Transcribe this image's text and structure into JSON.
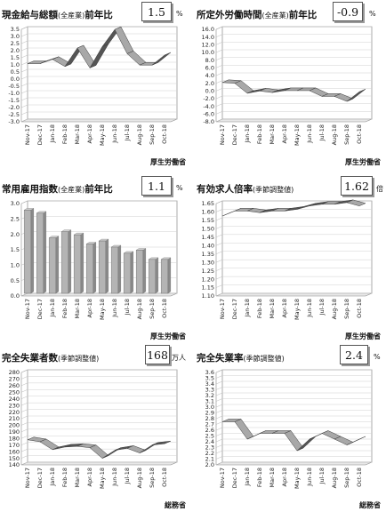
{
  "panels": [
    {
      "id": "p1",
      "title_main": "現金給与総額",
      "title_sub": "(全産業)",
      "title_tail": "前年比",
      "value": "1.5",
      "unit": "%",
      "source": "厚生労働省",
      "chart_data": {
        "type": "line",
        "categories": [
          "Nov-17",
          "Dec-17",
          "Jan-18",
          "Feb-18",
          "Mar-18",
          "Apr-18",
          "May-18",
          "Jun-18",
          "Jul-18",
          "Aug-18",
          "Sep-18",
          "Oct-18"
        ],
        "values": [
          0.9,
          0.9,
          1.2,
          0.7,
          2.0,
          0.6,
          2.1,
          3.3,
          1.6,
          0.8,
          0.8,
          1.5
        ],
        "ylim": [
          -3.0,
          3.5
        ],
        "yticks": [
          "3.5",
          "3.0",
          "2.5",
          "2.0",
          "1.5",
          "1.0",
          "0.5",
          "0.0",
          "-0.5",
          "-1.0",
          "-1.5",
          "-2.0",
          "-2.5",
          "-3.0"
        ]
      }
    },
    {
      "id": "p2",
      "title_main": "所定外労働時間",
      "title_sub": "(全産業)",
      "title_tail": "前年比",
      "value": "-0.9",
      "unit": "%",
      "source": "厚生労働省",
      "chart_data": {
        "type": "line",
        "categories": [
          "Nov-17",
          "Dec-17",
          "Jan-18",
          "Feb-18",
          "Mar-18",
          "Apr-18",
          "May-18",
          "Jun-18",
          "Jul-18",
          "Aug-18",
          "Sep-18",
          "Oct-18"
        ],
        "values": [
          1.5,
          1.3,
          -1.3,
          -0.7,
          -1.1,
          -0.6,
          -0.6,
          -0.6,
          -2.1,
          -2.1,
          -3.4,
          -0.9
        ],
        "ylim": [
          -8.0,
          16.0
        ],
        "yticks": [
          "16.0",
          "14.0",
          "12.0",
          "10.0",
          "8.0",
          "6.0",
          "4.0",
          "2.0",
          "0.0",
          "-2.0",
          "-4.0",
          "-6.0",
          "-8.0"
        ]
      }
    },
    {
      "id": "p3",
      "title_main": "常用雇用指数",
      "title_sub": "(全産業)",
      "title_tail": "前年比",
      "value": "1.1",
      "unit": "%",
      "source": "厚生労働省",
      "chart_data": {
        "type": "bar",
        "categories": [
          "Nov-17",
          "Dec-17",
          "Jan-18",
          "Feb-18",
          "Mar-18",
          "Apr-18",
          "May-18",
          "Jun-18",
          "Jul-18",
          "Aug-18",
          "Sep-18",
          "Oct-18"
        ],
        "values": [
          2.7,
          2.6,
          1.8,
          2.0,
          1.9,
          1.6,
          1.7,
          1.5,
          1.3,
          1.4,
          1.1,
          1.1
        ],
        "ylim": [
          0.0,
          3.0
        ],
        "yticks": [
          "3.0",
          "2.5",
          "2.0",
          "1.5",
          "1.0",
          "0.5",
          "0.0"
        ]
      }
    },
    {
      "id": "p4",
      "title_main": "有効求人倍率",
      "title_sub": "(季節調整値)",
      "title_tail": "",
      "value": "1.62",
      "unit": "倍",
      "source": "厚生労働省",
      "chart_data": {
        "type": "line",
        "categories": [
          "Nov-17",
          "Dec-17",
          "Jan-18",
          "Feb-18",
          "Mar-18",
          "Apr-18",
          "May-18",
          "Jun-18",
          "Jul-18",
          "Aug-18",
          "Sep-18",
          "Oct-18"
        ],
        "values": [
          1.56,
          1.59,
          1.59,
          1.58,
          1.59,
          1.59,
          1.6,
          1.62,
          1.63,
          1.63,
          1.64,
          1.62
        ],
        "ylim": [
          1.1,
          1.65
        ],
        "yticks": [
          "1.65",
          "1.60",
          "1.55",
          "1.50",
          "1.45",
          "1.40",
          "1.35",
          "1.30",
          "1.25",
          "1.20",
          "1.15",
          "1.10"
        ]
      }
    },
    {
      "id": "p5",
      "title_main": "完全失業者数",
      "title_sub": "(季節調整値)",
      "title_tail": "",
      "value": "168",
      "unit": "万人",
      "source": "総務省",
      "chart_data": {
        "type": "line",
        "categories": [
          "Nov-17",
          "Dec-17",
          "Jan-18",
          "Feb-18",
          "Mar-18",
          "Apr-18",
          "May-18",
          "Jun-18",
          "Jul-18",
          "Aug-18",
          "Sep-18",
          "Oct-18"
        ],
        "values": [
          174,
          171,
          159,
          163,
          164,
          162,
          146,
          158,
          161,
          154,
          166,
          168
        ],
        "ylim": [
          140,
          280
        ],
        "yticks": [
          "280",
          "270",
          "260",
          "250",
          "240",
          "230",
          "220",
          "210",
          "200",
          "190",
          "180",
          "170",
          "160",
          "150",
          "140"
        ]
      }
    },
    {
      "id": "p6",
      "title_main": "完全失業率",
      "title_sub": "(季節調整値)",
      "title_tail": "",
      "value": "2.4",
      "unit": "%",
      "source": "総務省",
      "chart_data": {
        "type": "line",
        "categories": [
          "Nov-17",
          "Dec-17",
          "Jan-18",
          "Feb-18",
          "Mar-18",
          "Apr-18",
          "May-18",
          "Jun-18",
          "Jul-18",
          "Aug-18",
          "Sep-18",
          "Oct-18"
        ],
        "values": [
          2.7,
          2.7,
          2.4,
          2.5,
          2.5,
          2.5,
          2.2,
          2.4,
          2.5,
          2.4,
          2.3,
          2.4
        ],
        "ylim": [
          2.0,
          3.6
        ],
        "yticks": [
          "3.6",
          "3.5",
          "3.4",
          "3.3",
          "3.2",
          "3.1",
          "3.0",
          "2.9",
          "2.8",
          "2.7",
          "2.6",
          "2.5",
          "2.4",
          "2.3",
          "2.2",
          "2.1",
          "2.0"
        ]
      }
    }
  ]
}
